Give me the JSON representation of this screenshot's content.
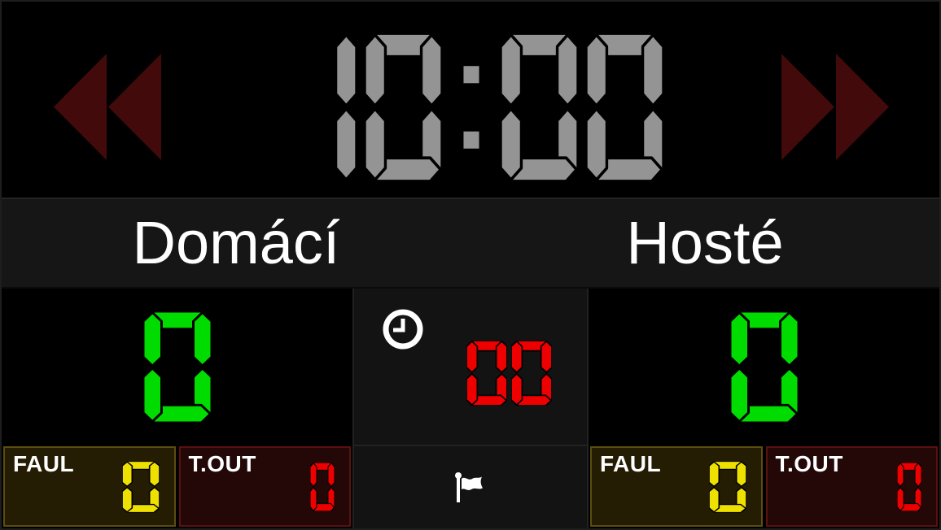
{
  "clock": {
    "time": "10:00"
  },
  "teams": {
    "home": {
      "name": "Domácí",
      "score": "0",
      "fouls": "0",
      "timeouts": "0"
    },
    "away": {
      "name": "Hosté",
      "score": "0",
      "fouls": "0",
      "timeouts": "0"
    }
  },
  "center": {
    "timeout_seconds": "00"
  },
  "labels": {
    "fouls": "FAUL",
    "timeouts": "T.OUT"
  },
  "colors": {
    "clock_digits": "#949494",
    "score_digits": "#00dc00",
    "timeout_digits": "#ee0000",
    "foul_digits": "#eee000",
    "tout_digits": "#ee0000",
    "arrow": "#420a0a",
    "name_text": "#ffffff",
    "label_text": "#ffffff"
  },
  "icons": {
    "rewind": "double-left-triangles",
    "fast_forward": "double-right-triangles",
    "timeout_clock": "clock-face-9-oclock",
    "flag": "white-waving-flag"
  }
}
